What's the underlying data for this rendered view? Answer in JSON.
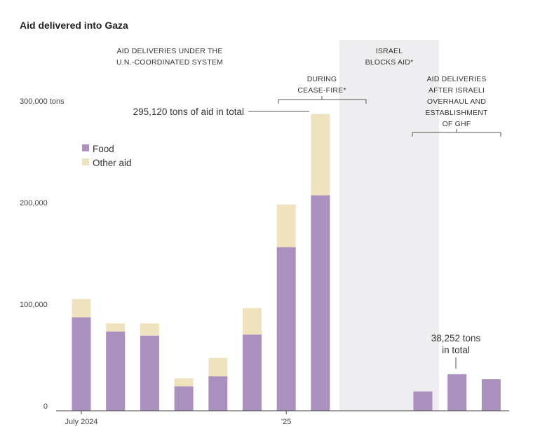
{
  "title": "Aid delivered into Gaza",
  "colors": {
    "food": "#ab8fbf",
    "other": "#efe3bf",
    "shade": "#eeeef0",
    "line": "#555555"
  },
  "chart_data": {
    "type": "bar",
    "stacked": true,
    "categories": [
      "July 2024",
      "",
      "",
      "",
      "",
      "",
      "'25",
      "",
      "",
      "",
      "",
      "",
      ""
    ],
    "series": [
      {
        "name": "Food",
        "values": [
          92000,
          78000,
          74000,
          24000,
          34000,
          75000,
          161000,
          212000,
          0,
          0,
          19000,
          36000,
          31000
        ]
      },
      {
        "name": "Other aid",
        "values": [
          18000,
          8000,
          12000,
          8000,
          18000,
          26000,
          42000,
          80000,
          0,
          0,
          0,
          0,
          0
        ]
      }
    ],
    "ylim": [
      0,
      300000
    ],
    "yticks": [
      0,
      100000,
      200000,
      300000
    ],
    "ytick_labels": [
      "0",
      "100,000",
      "200,000",
      "300,000 tons"
    ],
    "xtick_labels": [
      {
        "index": 0,
        "label": "July 2024"
      },
      {
        "index": 6,
        "label": "'25"
      }
    ],
    "legend": {
      "position": "top-left",
      "entries": [
        "Food",
        "Other aid"
      ]
    },
    "grid": false,
    "annotations": {
      "un_system": [
        "AID DELIVERIES UNDER THE",
        "U.N.-COORDINATED SYSTEM"
      ],
      "ceasefire": [
        "DURING",
        "CEASE-FIRE*"
      ],
      "israel_blocks": [
        "ISRAEL",
        "BLOCKS AID*"
      ],
      "ghf": [
        "AID DELIVERIES",
        "AFTER ISRAELI",
        "OVERHAUL AND",
        "ESTABLISHMENT",
        "OF GHF"
      ],
      "total_un": "295,120 tons of aid in total",
      "total_ghf": [
        "38,252 tons",
        "in total"
      ]
    }
  }
}
